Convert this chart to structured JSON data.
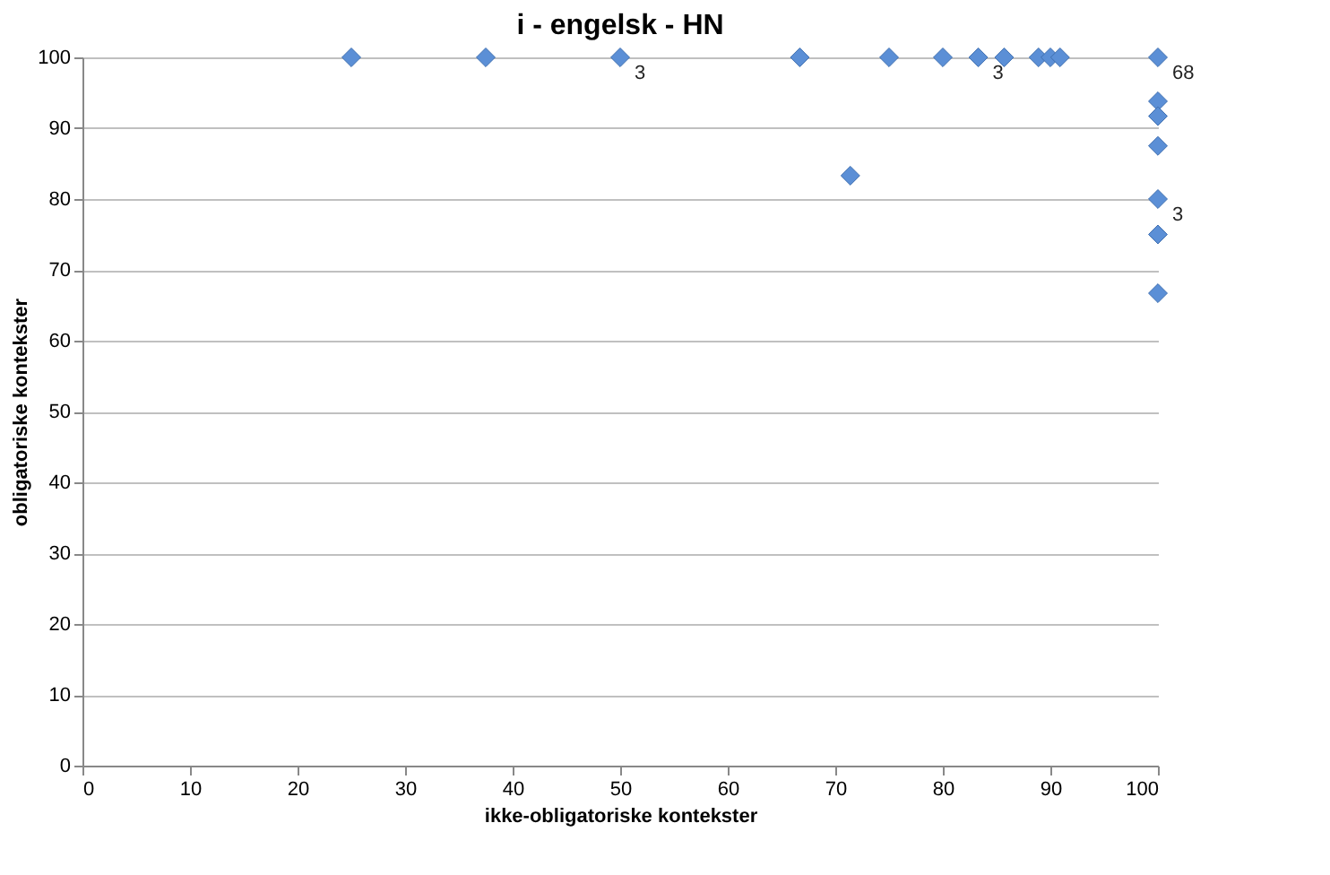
{
  "chart_data": {
    "type": "scatter",
    "title": "i - engelsk - HN",
    "xlabel": "ikke-obligatoriske kontekster",
    "ylabel": "obligatoriske kontekster",
    "series": [
      {
        "color": "#5b8fd6",
        "x": [
          25,
          37.5,
          50,
          66.7,
          75,
          80,
          83.3,
          85.7,
          88.9,
          90,
          90.9,
          100,
          71.4,
          100,
          100,
          100,
          100,
          100,
          100
        ],
        "values": [
          100,
          100,
          100,
          100,
          100,
          100,
          100,
          100,
          100,
          100,
          100,
          100,
          83.3,
          93.8,
          91.7,
          87.5,
          80,
          75,
          66.7
        ]
      }
    ],
    "xlim": [
      0,
      100
    ],
    "xticks": [
      0,
      10,
      20,
      30,
      40,
      50,
      60,
      70,
      80,
      90,
      100
    ],
    "ylim": [
      0,
      100
    ],
    "yticks": [
      0,
      10,
      20,
      30,
      40,
      50,
      60,
      70,
      80,
      90,
      100
    ],
    "grid": "y",
    "marker": "diamond",
    "annotations": [
      {
        "text": "3",
        "x": 50,
        "y": 100
      },
      {
        "text": "3",
        "x": 83.3,
        "y": 100
      },
      {
        "text": "68",
        "x": 100,
        "y": 100
      },
      {
        "text": "3",
        "x": 100,
        "y": 80
      }
    ]
  }
}
